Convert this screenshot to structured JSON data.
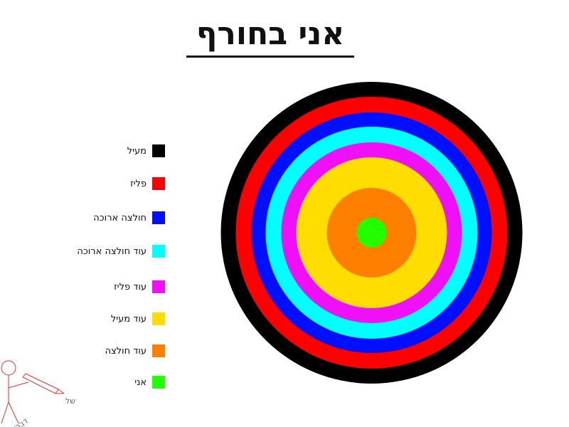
{
  "chart_data": {
    "type": "concentric-circles",
    "title": "אני בחורף",
    "legend_placement": "left",
    "series": [
      {
        "name": "מעיל",
        "color": "#000000",
        "value": 212
      },
      {
        "name": "פליז",
        "color": "#ff0000",
        "value": 191
      },
      {
        "name": "חולצה ארוכה",
        "color": "#0010ff",
        "value": 169
      },
      {
        "name": "עוד חולצה ארוכה",
        "color": "#00ffff",
        "value": 149
      },
      {
        "name": "עוד פליז",
        "color": "#f010f8",
        "value": 127
      },
      {
        "name": "עוד מעיל",
        "color": "#ffdd00",
        "value": 106
      },
      {
        "name": "עוד חולצה",
        "color": "#ff8000",
        "value": 63
      },
      {
        "name": "אני",
        "color": "#22ff00",
        "value": 21
      }
    ]
  },
  "logo": {
    "text": "גרפים של דברים",
    "color": "#e03030"
  }
}
